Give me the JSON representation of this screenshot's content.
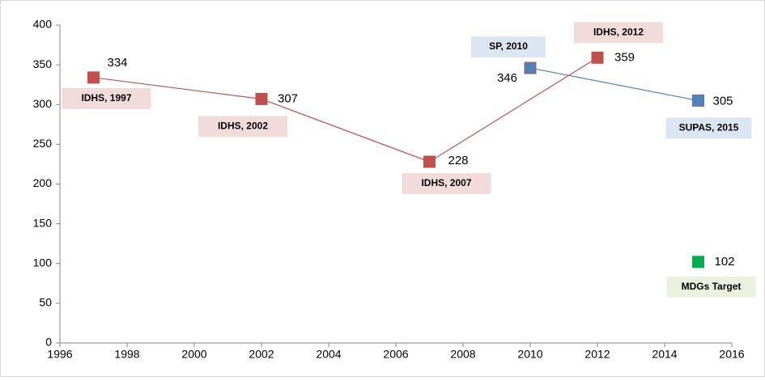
{
  "chart_data": {
    "type": "line",
    "xlim": [
      1996,
      2016
    ],
    "xticks": [
      1996,
      1998,
      2000,
      2002,
      2004,
      2006,
      2008,
      2010,
      2012,
      2014,
      2016
    ],
    "ylim": [
      0,
      400
    ],
    "yticks": [
      0,
      50,
      100,
      150,
      200,
      250,
      300,
      350,
      400
    ],
    "grid": false,
    "series": [
      {
        "color": "#c0504d",
        "label_bg": "#f2dcdb",
        "x": [
          1997,
          2002,
          2007,
          2012
        ],
        "values": [
          334,
          307,
          228,
          359
        ],
        "point_labels": [
          "IDHS, 1997",
          "IDHS, 2002",
          "IDHS, 2007",
          "IDHS, 2012"
        ]
      },
      {
        "color": "#4f81bd",
        "label_bg": "#dce6f2",
        "x": [
          2010,
          2015
        ],
        "values": [
          346,
          305
        ],
        "point_labels": [
          "SP, 2010",
          "SUPAS, 2015"
        ]
      },
      {
        "color": "#00b050",
        "label_bg": "#ebf1de",
        "x": [
          2015
        ],
        "values": [
          102
        ],
        "point_labels": [
          "MDGs Target"
        ]
      }
    ]
  }
}
